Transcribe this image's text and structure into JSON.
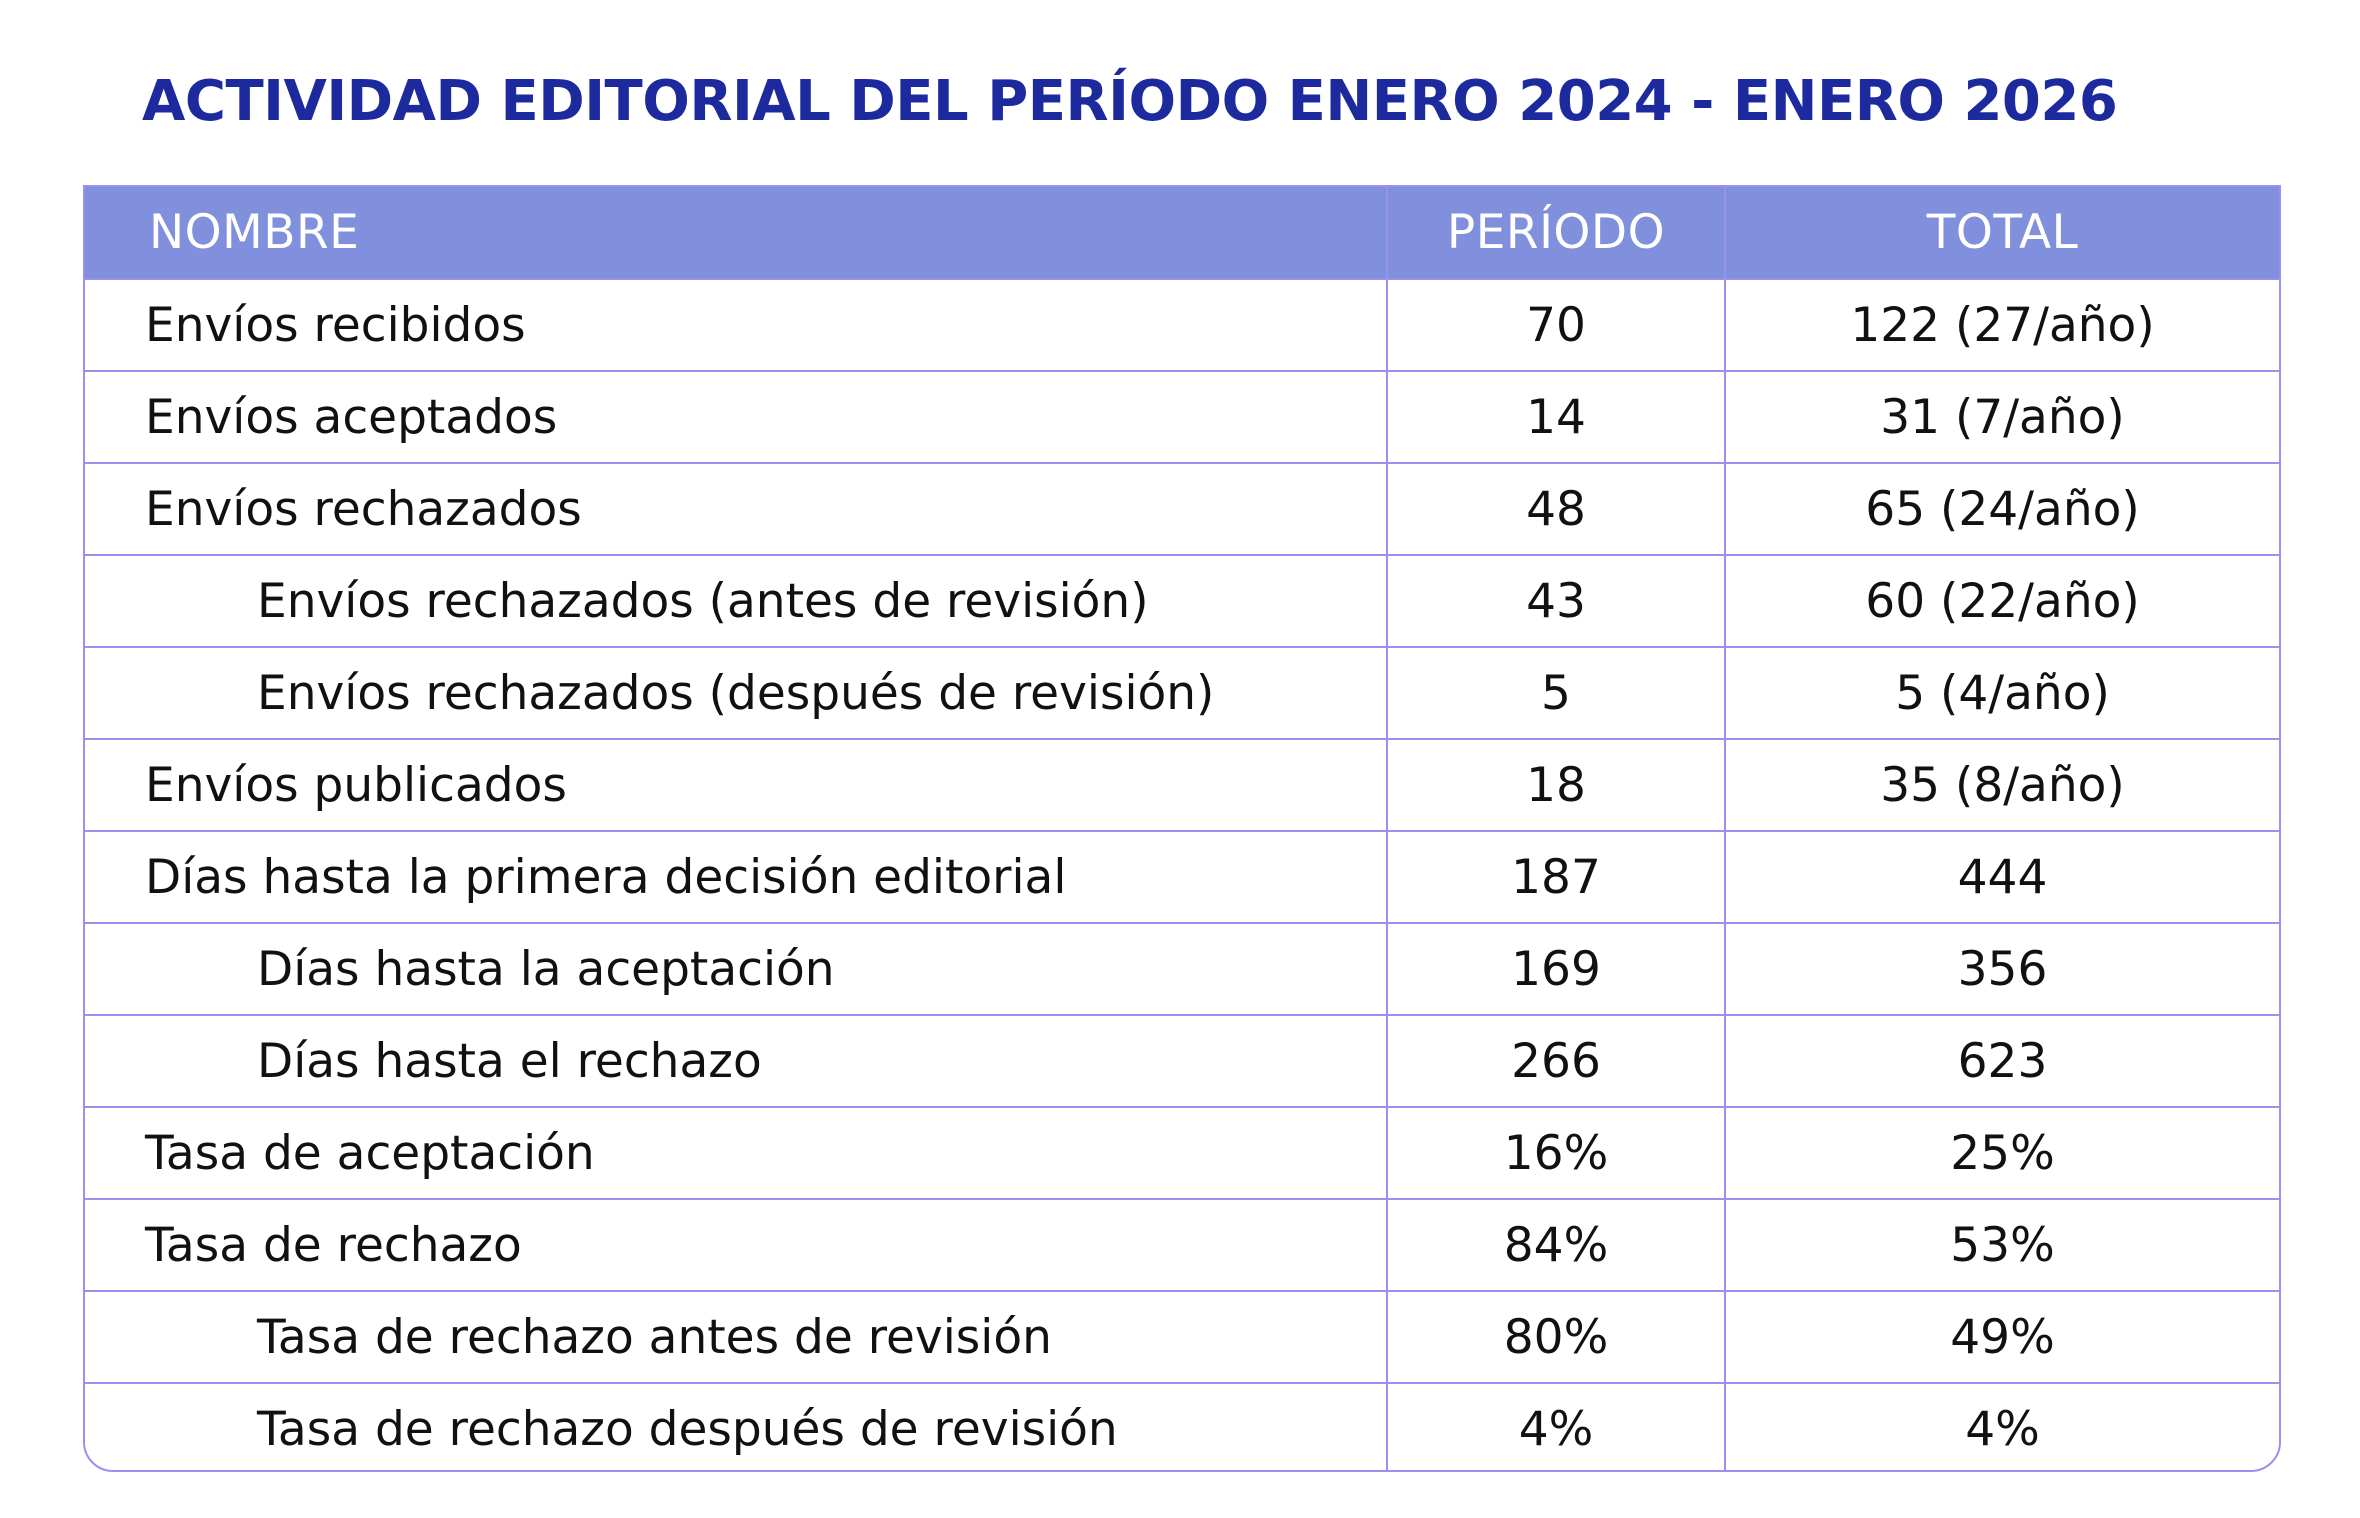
{
  "title": "ACTIVIDAD EDITORIAL DEL PERÍODO ENERO 2024 - ENERO 2026",
  "table": {
    "headers": {
      "name": "NOMBRE",
      "period": "PERÍODO",
      "total": "TOTAL"
    },
    "rows": [
      {
        "name": "Envíos recibidos",
        "period": "70",
        "total": "122 (27/año)",
        "indent": false
      },
      {
        "name": "Envíos aceptados",
        "period": "14",
        "total": "31 (7/año)",
        "indent": false
      },
      {
        "name": "Envíos rechazados",
        "period": "48",
        "total": "65 (24/año)",
        "indent": false
      },
      {
        "name": "Envíos rechazados (antes de revisión)",
        "period": "43",
        "total": "60 (22/año)",
        "indent": true
      },
      {
        "name": "Envíos rechazados (después de revisión)",
        "period": "5",
        "total": "5 (4/año)",
        "indent": true
      },
      {
        "name": "Envíos publicados",
        "period": "18",
        "total": "35 (8/año)",
        "indent": false
      },
      {
        "name": "Días hasta la primera decisión editorial",
        "period": "187",
        "total": "444",
        "indent": false
      },
      {
        "name": "Días hasta la aceptación",
        "period": "169",
        "total": "356",
        "indent": true
      },
      {
        "name": "Días hasta el rechazo",
        "period": "266",
        "total": "623",
        "indent": true
      },
      {
        "name": "Tasa de aceptación",
        "period": "16%",
        "total": "25%",
        "indent": false
      },
      {
        "name": "Tasa de rechazo",
        "period": "84%",
        "total": "53%",
        "indent": false
      },
      {
        "name": "Tasa de rechazo antes de revisión",
        "period": "80%",
        "total": "49%",
        "indent": true
      },
      {
        "name": "Tasa de rechazo después de revisión",
        "period": "4%",
        "total": "4%",
        "indent": true
      }
    ]
  },
  "colors": {
    "title": "#1c2a9e",
    "header_bg": "#8090dc",
    "header_text": "#ffffff",
    "border": "#9990ef",
    "body_text": "#111111"
  }
}
